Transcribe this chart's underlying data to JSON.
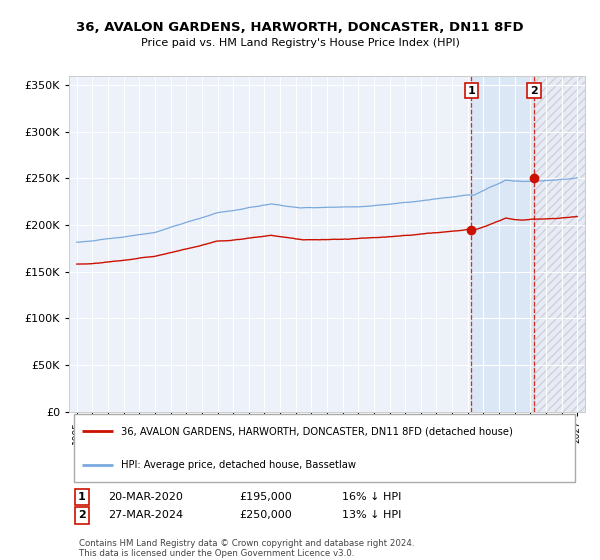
{
  "title": "36, AVALON GARDENS, HARWORTH, DONCASTER, DN11 8FD",
  "subtitle": "Price paid vs. HM Land Registry's House Price Index (HPI)",
  "background_color": "#ffffff",
  "plot_bg_color": "#edf1f9",
  "grid_color": "#ffffff",
  "hpi_color": "#7aaadd",
  "price_color": "#cc1100",
  "marker1_x": 2020.22,
  "marker1_y": 195000,
  "marker2_x": 2024.24,
  "marker2_y": 250000,
  "ylim": [
    0,
    360000
  ],
  "yticks": [
    0,
    50000,
    100000,
    150000,
    200000,
    250000,
    300000,
    350000
  ],
  "xlim_min": 1994.5,
  "xlim_max": 2027.5,
  "legend_line1": "36, AVALON GARDENS, HARWORTH, DONCASTER, DN11 8FD (detached house)",
  "legend_line2": "HPI: Average price, detached house, Bassetlaw",
  "marker1_date": "20-MAR-2020",
  "marker1_price": "£195,000",
  "marker1_hpi": "16% ↓ HPI",
  "marker2_date": "27-MAR-2024",
  "marker2_price": "£250,000",
  "marker2_hpi": "13% ↓ HPI",
  "footer": "Contains HM Land Registry data © Crown copyright and database right 2024.\nThis data is licensed under the Open Government Licence v3.0."
}
